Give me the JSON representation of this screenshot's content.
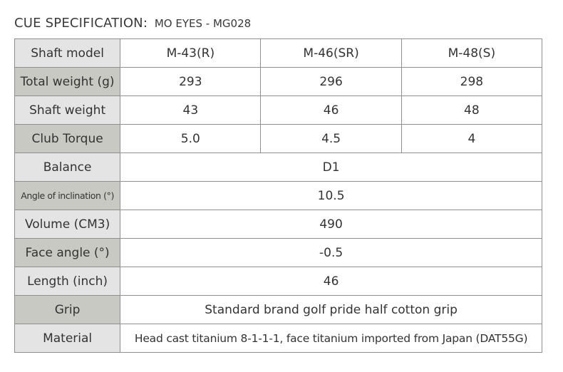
{
  "title": {
    "main": "CUE SPECIFICATION:",
    "sub": "MO EYES - MG028"
  },
  "rows": {
    "shaft_model": {
      "label": "Shaft model",
      "values": [
        "M-43(R)",
        "M-46(SR)",
        "M-48(S)"
      ]
    },
    "total_weight": {
      "label": "Total weight (g)",
      "values": [
        "293",
        "296",
        "298"
      ]
    },
    "shaft_weight": {
      "label": "Shaft weight",
      "values": [
        "43",
        "46",
        "48"
      ]
    },
    "club_torque": {
      "label": "Club Torque",
      "values": [
        "5.0",
        "4.5",
        "4"
      ]
    },
    "balance": {
      "label": "Balance",
      "value": "D1"
    },
    "angle": {
      "label": "Angle of inclination (°)",
      "value": "10.5"
    },
    "volume": {
      "label": "Volume (CM3)",
      "value": "490"
    },
    "face_angle": {
      "label": "Face angle (°)",
      "value": "-0.5"
    },
    "length": {
      "label": "Length (inch)",
      "value": "46"
    },
    "grip": {
      "label": "Grip",
      "value": "Standard brand golf pride half cotton grip"
    },
    "material": {
      "label": "Material",
      "value": "Head cast titanium 8-1-1-1, face titanium imported from Japan (DAT55G)"
    }
  },
  "colors": {
    "label_light": "#e4e4e4",
    "label_dark": "#c9c9c4",
    "border": "#8e8e8e",
    "text": "#333333"
  }
}
